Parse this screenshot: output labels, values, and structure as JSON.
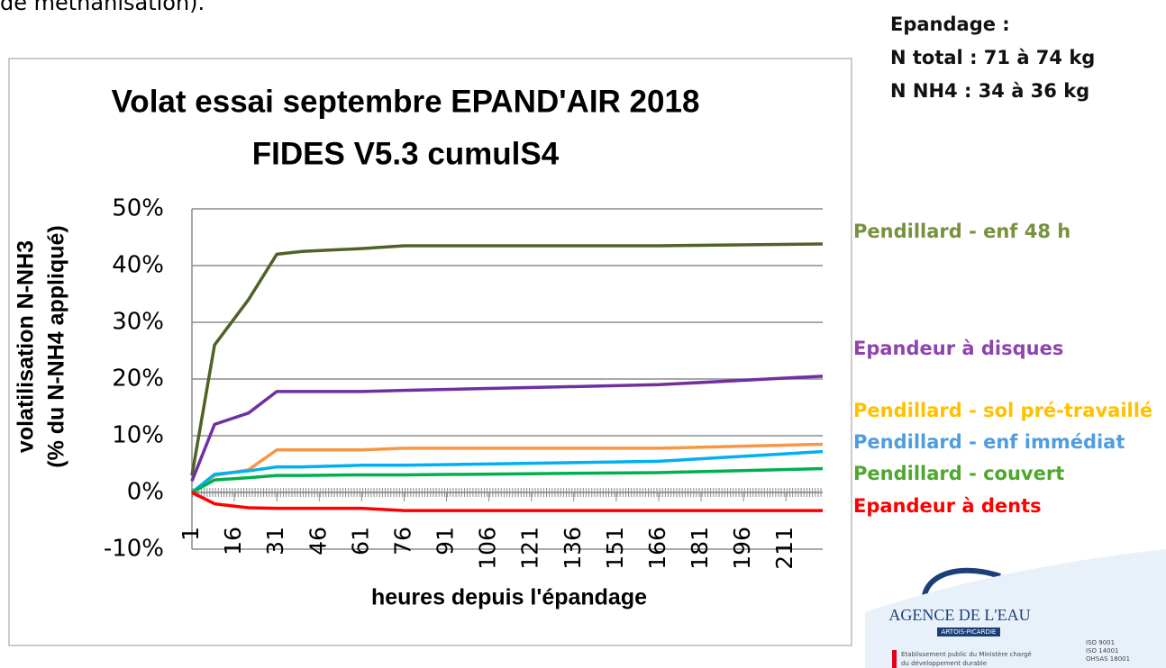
{
  "page": {
    "intro": "de méthanisation).",
    "info": [
      "Epandage :",
      "N total : 71 à 74 kg",
      "N NH4 : 34 à 36 kg"
    ],
    "logo": {
      "name": "AGENCE DE L'EAU",
      "region": "ARTOIS-PICARDIE",
      "tagline": [
        "Etablissement public du Ministère chargé",
        "du développement durable"
      ],
      "certifications": [
        "ISO 9001",
        "ISO 14001",
        "OHSAS 18001"
      ]
    }
  },
  "chart_data": {
    "type": "line",
    "title": [
      "Volat essai septembre EPAND'AIR 2018",
      "FIDES V5.3 cumulS4"
    ],
    "y_label": [
      "volatilisation N-NH3",
      "(% du N-NH4 appliqué)"
    ],
    "x_label": "heures depuis l'épandage",
    "x": [
      1,
      9,
      21,
      31,
      40,
      61,
      76,
      166,
      224
    ],
    "xlim": [
      1,
      224
    ],
    "xticks": [
      1,
      16,
      31,
      46,
      61,
      76,
      91,
      106,
      121,
      136,
      151,
      166,
      181,
      196,
      211
    ],
    "ylim": [
      -10,
      50
    ],
    "yticks": [
      {
        "value": -10,
        "label": "-10%"
      },
      {
        "value": 0,
        "label": "0%"
      },
      {
        "value": 10,
        "label": "10%"
      },
      {
        "value": 20,
        "label": "20%"
      },
      {
        "value": 30,
        "label": "30%"
      },
      {
        "value": 40,
        "label": "40%"
      },
      {
        "value": 50,
        "label": "50%"
      }
    ],
    "grid": true,
    "series": [
      {
        "name": "Pendillard - enf 48 h",
        "color": "#4f6228",
        "label_color": "#76923c",
        "values": [
          3,
          26,
          34,
          42,
          42.5,
          43,
          43.5,
          43.5,
          43.8
        ]
      },
      {
        "name": "Epandeur à disques",
        "color": "#7030a0",
        "label_color": "#8e44ad",
        "values": [
          2,
          12,
          14,
          17.8,
          17.8,
          17.8,
          18,
          19,
          20.5
        ]
      },
      {
        "name": "Pendillard - sol pré-travaillé",
        "color": "#f79646",
        "label_color": "#ffc000",
        "values": [
          0,
          3,
          4,
          7.5,
          7.5,
          7.5,
          7.8,
          7.8,
          8.5
        ]
      },
      {
        "name": "Pendillard - enf immédiat",
        "color": "#00b0f0",
        "label_color": "#4f9de0",
        "values": [
          0,
          3.2,
          3.8,
          4.5,
          4.5,
          4.8,
          4.8,
          5.5,
          7.2
        ]
      },
      {
        "name": "Pendillard - couvert",
        "color": "#00b050",
        "label_color": "#4ea72e",
        "values": [
          0,
          2.2,
          2.6,
          3,
          3,
          3.1,
          3.1,
          3.5,
          4.2
        ]
      },
      {
        "name": "Epandeur à dents",
        "color": "#ff0000",
        "label_color": "#ff0000",
        "values": [
          0,
          -2,
          -2.7,
          -2.8,
          -2.8,
          -2.8,
          -3.2,
          -3.2,
          -3.2
        ]
      }
    ]
  }
}
